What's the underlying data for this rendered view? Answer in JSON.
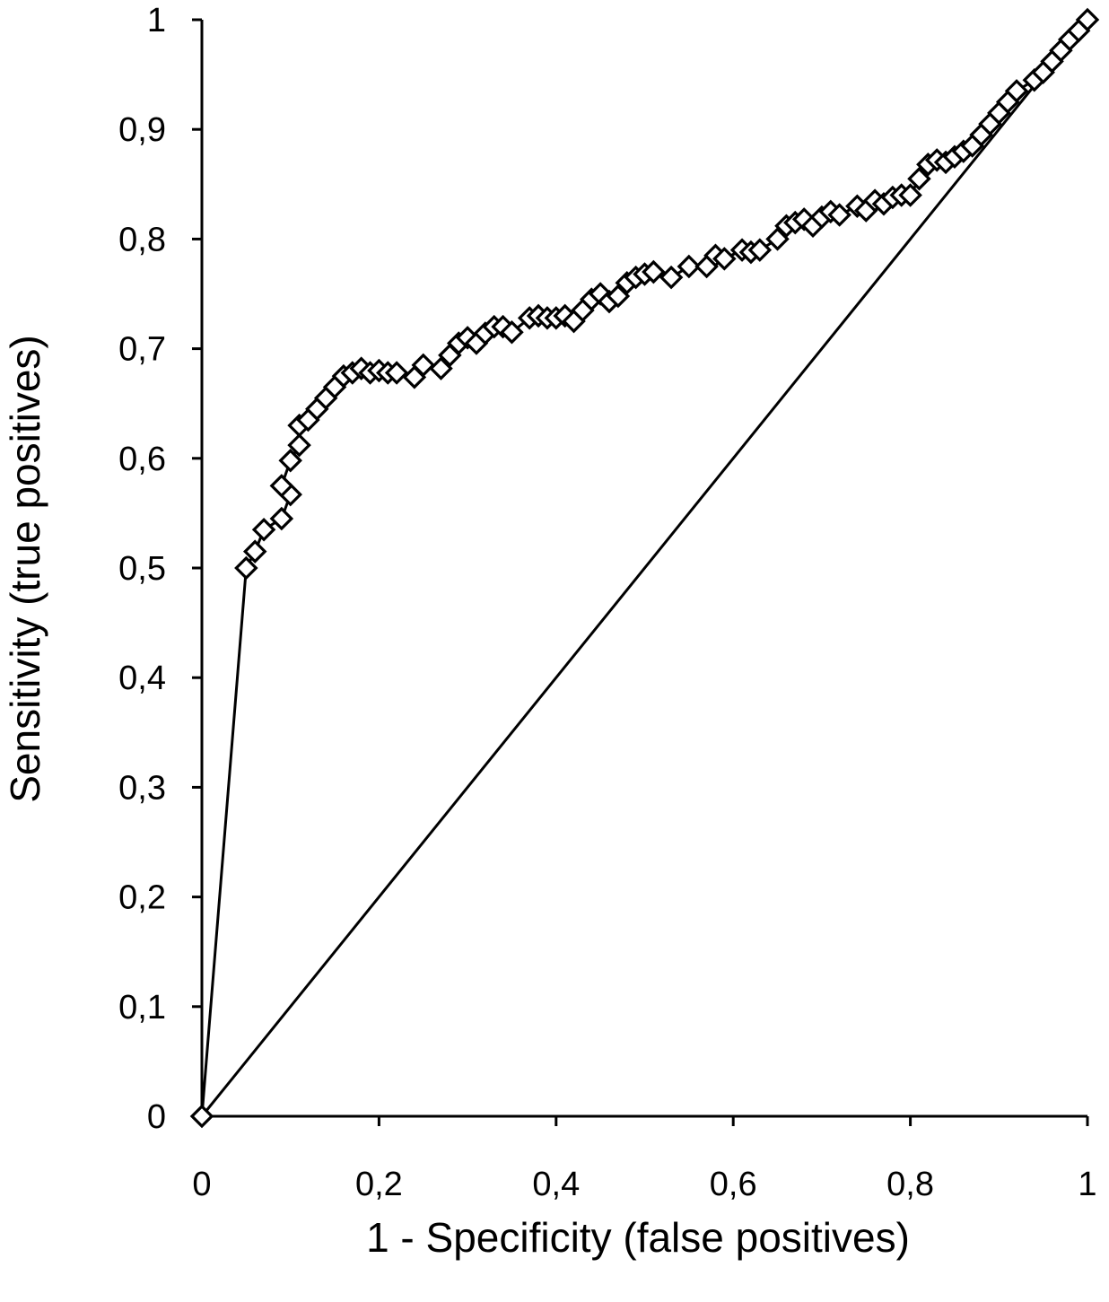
{
  "chart_data": {
    "type": "scatter",
    "title": "",
    "xlabel": "1 - Specificity (false positives)",
    "ylabel": "Sensitivity (true positives)",
    "xlim": [
      0,
      1
    ],
    "ylim": [
      0,
      1
    ],
    "x_ticks": [
      "0",
      "0,2",
      "0,4",
      "0,6",
      "0,8",
      "1"
    ],
    "y_ticks": [
      "0",
      "0,1",
      "0,2",
      "0,3",
      "0,4",
      "0,5",
      "0,6",
      "0,7",
      "0,8",
      "0,9",
      "1"
    ],
    "grid": false,
    "legend": "none",
    "marker": "diamond-open",
    "reference_line": {
      "x": [
        0,
        1
      ],
      "y": [
        0,
        1
      ]
    },
    "series": [
      {
        "x": [
          0,
          0.05,
          0.06,
          0.07,
          0.09,
          0.1,
          0.09,
          0.1,
          0.11,
          0.11,
          0.12,
          0.13,
          0.14,
          0.15,
          0.16,
          0.17,
          0.18,
          0.19,
          0.2,
          0.21,
          0.22,
          0.24,
          0.25,
          0.27,
          0.28,
          0.29,
          0.3,
          0.31,
          0.32,
          0.33,
          0.34,
          0.35,
          0.37,
          0.38,
          0.39,
          0.4,
          0.41,
          0.42,
          0.43,
          0.44,
          0.45,
          0.46,
          0.47,
          0.48,
          0.49,
          0.5,
          0.51,
          0.53,
          0.55,
          0.57,
          0.58,
          0.59,
          0.61,
          0.62,
          0.63,
          0.65,
          0.66,
          0.67,
          0.68,
          0.69,
          0.7,
          0.71,
          0.72,
          0.74,
          0.75,
          0.76,
          0.77,
          0.78,
          0.79,
          0.8,
          0.81,
          0.82,
          0.83,
          0.84,
          0.85,
          0.86,
          0.87,
          0.88,
          0.89,
          0.9,
          0.91,
          0.92,
          0.94,
          0.95,
          0.96,
          0.97,
          0.98,
          0.99,
          1
        ],
        "y": [
          0,
          0.5,
          0.515,
          0.535,
          0.545,
          0.567,
          0.575,
          0.598,
          0.612,
          0.63,
          0.635,
          0.645,
          0.655,
          0.665,
          0.675,
          0.678,
          0.682,
          0.678,
          0.68,
          0.678,
          0.678,
          0.674,
          0.685,
          0.682,
          0.694,
          0.705,
          0.71,
          0.705,
          0.714,
          0.72,
          0.72,
          0.715,
          0.728,
          0.73,
          0.728,
          0.728,
          0.73,
          0.725,
          0.735,
          0.745,
          0.75,
          0.743,
          0.748,
          0.76,
          0.765,
          0.768,
          0.77,
          0.765,
          0.775,
          0.775,
          0.785,
          0.782,
          0.79,
          0.788,
          0.79,
          0.8,
          0.812,
          0.815,
          0.818,
          0.812,
          0.82,
          0.825,
          0.822,
          0.83,
          0.826,
          0.835,
          0.832,
          0.838,
          0.84,
          0.84,
          0.855,
          0.868,
          0.872,
          0.87,
          0.875,
          0.88,
          0.885,
          0.895,
          0.905,
          0.915,
          0.925,
          0.935,
          0.945,
          0.952,
          0.962,
          0.972,
          0.982,
          0.99,
          1
        ]
      }
    ]
  }
}
